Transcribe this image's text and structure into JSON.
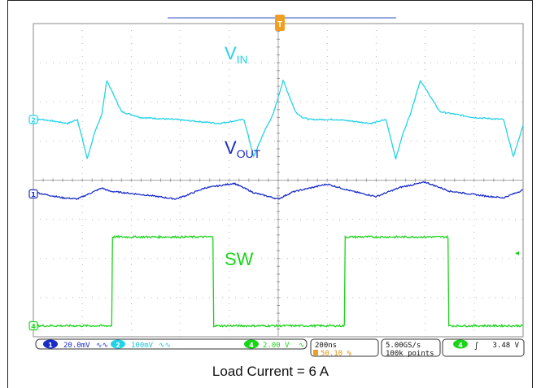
{
  "caption": "Load Current = 6 A",
  "trigger_marker": "T",
  "chart_data": {
    "type": "line",
    "title": "",
    "xlabel": "",
    "ylabel": "",
    "grid": true,
    "time_per_div": "200ns",
    "x_divisions": 10,
    "y_divisions": 8,
    "xlim": [
      0,
      10
    ],
    "ylim": [
      0,
      8
    ],
    "series": [
      {
        "name": "V",
        "name_sub": "IN",
        "channel": "2",
        "color": "#22d3e6",
        "ground_level_div": 5.55,
        "x": [
          0,
          0.2,
          0.7,
          0.9,
          1.1,
          1.25,
          1.4,
          1.5,
          1.8,
          2.2,
          2.9,
          3.8,
          4.3,
          4.5,
          4.7,
          4.9,
          5.1,
          5.35,
          5.5,
          5.65,
          6.2,
          6.9,
          7.2,
          7.4,
          7.55,
          7.7,
          7.9,
          8.3,
          9.0,
          9.6,
          9.8,
          10.0
        ],
        "values": [
          5.55,
          5.55,
          5.45,
          5.55,
          4.55,
          5.2,
          5.7,
          6.55,
          5.75,
          5.6,
          5.55,
          5.45,
          5.55,
          4.6,
          5.2,
          5.7,
          6.55,
          5.75,
          5.6,
          5.55,
          5.55,
          5.45,
          5.55,
          4.55,
          5.2,
          5.7,
          6.55,
          5.75,
          5.6,
          5.55,
          4.6,
          5.4
        ]
      },
      {
        "name": "V",
        "name_sub": "OUT",
        "channel": "1",
        "color": "#1a2cc8",
        "ground_level_div": 3.65,
        "x": [
          0,
          0.3,
          0.6,
          0.9,
          1.4,
          1.55,
          2.3,
          2.9,
          3.1,
          3.5,
          4.1,
          4.5,
          5.0,
          5.3,
          6.0,
          6.5,
          7.0,
          7.5,
          8.0,
          8.5,
          9.2,
          9.6,
          10.0
        ],
        "values": [
          3.7,
          3.62,
          3.55,
          3.52,
          3.8,
          3.72,
          3.62,
          3.52,
          3.6,
          3.8,
          3.92,
          3.68,
          3.52,
          3.7,
          3.9,
          3.72,
          3.58,
          3.82,
          3.95,
          3.72,
          3.6,
          3.55,
          3.75
        ]
      },
      {
        "name": "SW",
        "channel": "4",
        "color": "#1ad41a",
        "ground_level_div": 0.28,
        "volts_per_div": "2.00 V",
        "x": [
          0,
          1.6,
          1.6,
          3.68,
          3.68,
          6.35,
          6.35,
          8.48,
          8.48,
          10.0
        ],
        "values": [
          0.28,
          0.28,
          2.55,
          2.55,
          0.28,
          0.28,
          2.55,
          2.55,
          0.28,
          0.28
        ]
      }
    ],
    "status_bar": {
      "ch1_scale": "20.0mV",
      "ch2_scale": "100mV",
      "ch4_scale": "2.00 V",
      "timebase": "200ns",
      "trigger_position": "50.10 %",
      "sample_rate": "5.00GS/s",
      "record_length": "100k points",
      "trigger_level": "3.48 V"
    },
    "channel_labels": [
      "1",
      "2",
      "4"
    ]
  }
}
